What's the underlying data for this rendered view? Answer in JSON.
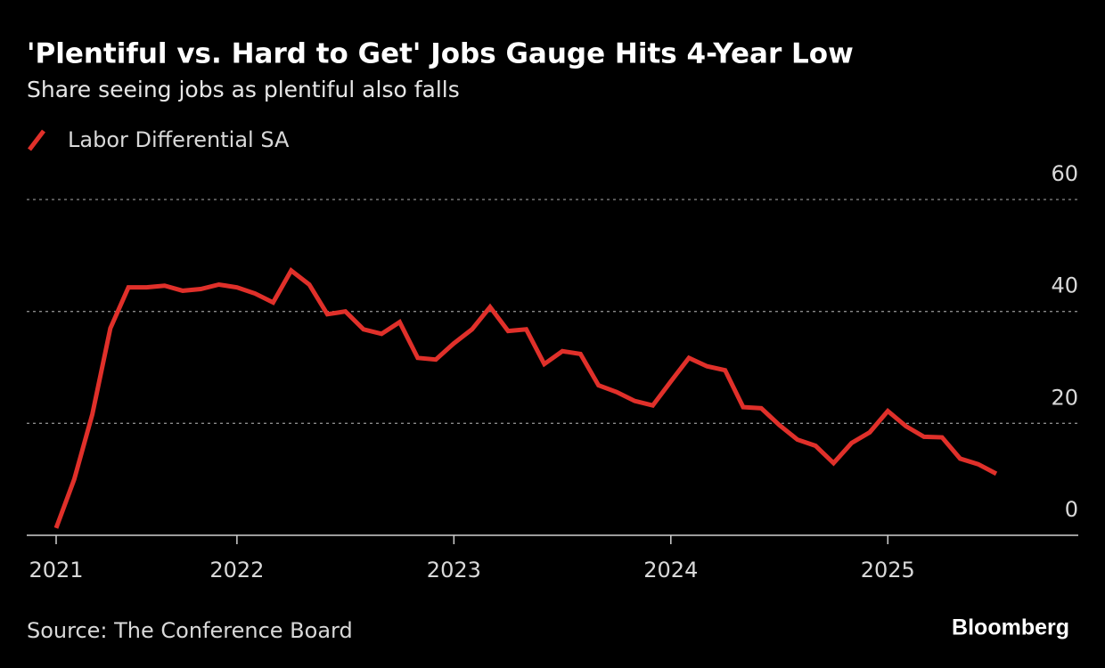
{
  "chart_data": {
    "type": "line",
    "title": "'Plentiful vs. Hard to Get' Jobs Gauge Hits 4-Year Low",
    "subtitle": "Share seeing jobs as plentiful also falls",
    "source": "Source: The Conference Board",
    "brand": "Bloomberg",
    "x": [
      "2021-03",
      "2021-04",
      "2021-05",
      "2021-06",
      "2021-07",
      "2021-08",
      "2021-09",
      "2021-10",
      "2021-11",
      "2021-12",
      "2022-01",
      "2022-02",
      "2022-03",
      "2022-04",
      "2022-05",
      "2022-06",
      "2022-07",
      "2022-08",
      "2022-09",
      "2022-10",
      "2022-11",
      "2022-12",
      "2023-01",
      "2023-02",
      "2023-03",
      "2023-04",
      "2023-05",
      "2023-06",
      "2023-07",
      "2023-08",
      "2023-09",
      "2023-10",
      "2023-11",
      "2023-12",
      "2024-01",
      "2024-02",
      "2024-03",
      "2024-04",
      "2024-05",
      "2024-06",
      "2024-07",
      "2024-08",
      "2024-09",
      "2024-10",
      "2024-11",
      "2024-12",
      "2025-01",
      "2025-02",
      "2025-03",
      "2025-04",
      "2025-05",
      "2025-06",
      "2025-07"
    ],
    "series": [
      {
        "name": "Labor Differential SA",
        "color": "#e0302a",
        "values": [
          1.3,
          10,
          21.6,
          37,
          44.3,
          44.3,
          44.6,
          43.7,
          44,
          44.8,
          44.3,
          43.2,
          41.6,
          47.3,
          44.8,
          39.5,
          40,
          36.8,
          36,
          38.1,
          31.7,
          31.4,
          34.3,
          36.8,
          40.8,
          36.5,
          36.8,
          30.6,
          32.9,
          32.4,
          26.8,
          25.6,
          24,
          23.2,
          27.5,
          31.7,
          30.2,
          29.5,
          22.9,
          22.7,
          19.7,
          17.1,
          16,
          12.9,
          16.5,
          18.4,
          22.2,
          19.5,
          17.6,
          17.5,
          13.7,
          12.7,
          11
        ]
      }
    ],
    "xticks": [
      {
        "value": "2021-03",
        "label": "2021"
      },
      {
        "value": "2022-01",
        "label": "2022"
      },
      {
        "value": "2023-01",
        "label": "2023"
      },
      {
        "value": "2024-01",
        "label": "2024"
      },
      {
        "value": "2025-01",
        "label": "2025"
      }
    ],
    "ylim": [
      0,
      60
    ],
    "yticks": [
      0,
      20,
      40,
      60
    ],
    "grid": true
  }
}
